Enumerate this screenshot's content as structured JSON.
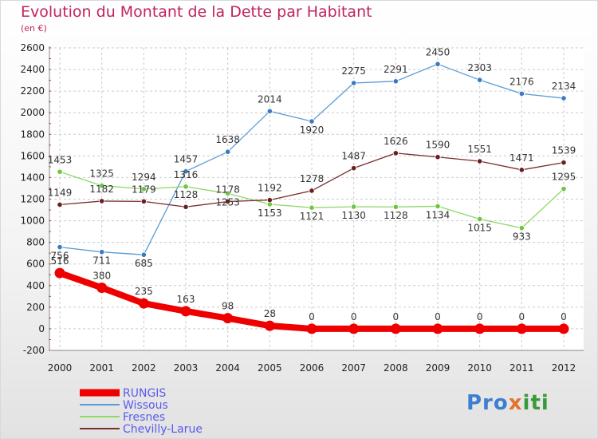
{
  "title": "Evolution du Montant de la Dette par Habitant",
  "subtitle": "(en €)",
  "logo": "Proxiti",
  "chart_data": {
    "type": "line",
    "categories": [
      "2000",
      "2001",
      "2002",
      "2003",
      "2004",
      "2005",
      "2006",
      "2007",
      "2008",
      "2009",
      "2010",
      "2011",
      "2012"
    ],
    "ylim": [
      -200,
      2600
    ],
    "yticks": [
      -200,
      0,
      200,
      400,
      600,
      800,
      1000,
      1200,
      1400,
      1600,
      1800,
      2000,
      2200,
      2400,
      2600
    ],
    "grid": true,
    "legend_position": "bottom-left",
    "series": [
      {
        "name": "Wissous",
        "color": "#5a9bd4",
        "marker": "#3a7ac0",
        "width": 1.3,
        "values": [
          756,
          711,
          685,
          1457,
          1638,
          2014,
          1920,
          2275,
          2291,
          2450,
          2303,
          2176,
          2134
        ]
      },
      {
        "name": "Fresnes",
        "color": "#8fd86a",
        "marker": "#6cc63f",
        "width": 1.3,
        "values": [
          1453,
          1325,
          1294,
          1316,
          1253,
          1153,
          1121,
          1130,
          1128,
          1134,
          1015,
          933,
          1295
        ]
      },
      {
        "name": "Chevilly-Larue",
        "color": "#7a2d2d",
        "marker": "#6a1f1f",
        "width": 1.3,
        "values": [
          1149,
          1182,
          1179,
          1128,
          1178,
          1192,
          1278,
          1487,
          1626,
          1590,
          1551,
          1471,
          1539
        ]
      },
      {
        "name": "RUNGIS",
        "color": "#ee0000",
        "marker": "#ee0000",
        "width": 8,
        "values": [
          516,
          380,
          235,
          163,
          98,
          28,
          0,
          0,
          0,
          0,
          0,
          0,
          0
        ]
      }
    ],
    "legend_order": [
      "RUNGIS",
      "Wissous",
      "Fresnes",
      "Chevilly-Larue"
    ]
  }
}
